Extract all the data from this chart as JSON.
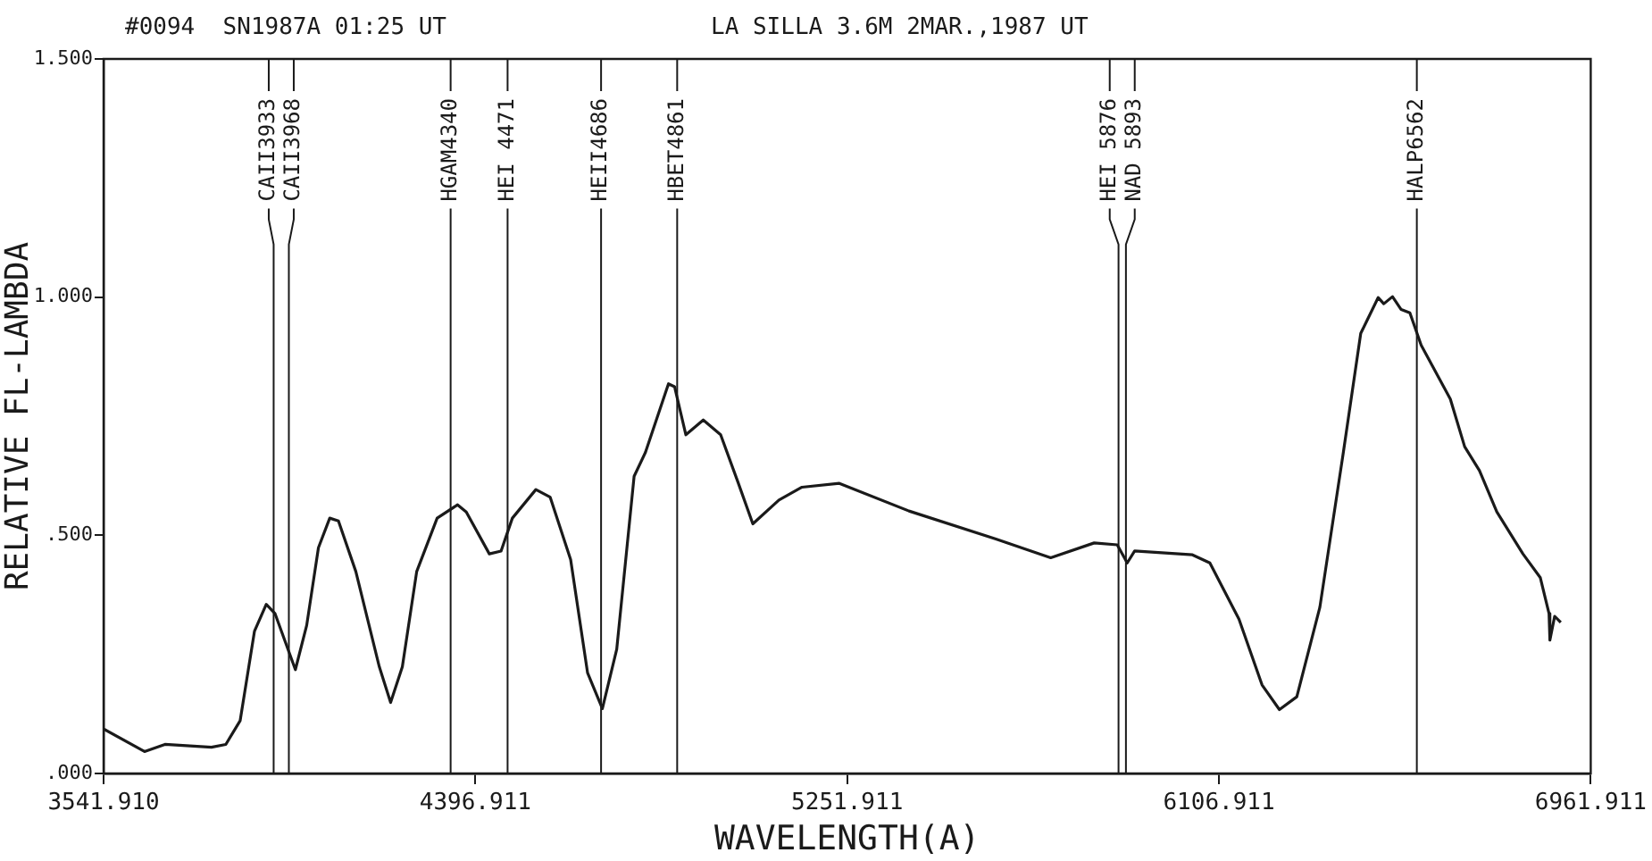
{
  "chart_data": {
    "type": "line",
    "title": "#0094  SN1987A 01:25 UT",
    "subtitle": "LA SILLA 3.6M 2MAR.,1987 UT",
    "xlabel": "WAVELENGTH(A)",
    "ylabel": "RELATIVE FL-LAMBDA",
    "xlim": [
      3541.91,
      6961.911
    ],
    "xticks": [
      {
        "value": 3541.91,
        "label": "3541.910"
      },
      4396.911,
      5251.911,
      6106.911,
      6961.911
    ],
    "ylim": [
      0,
      1.5
    ],
    "yticks": [
      {
        "value": 0,
        "label": ".000"
      },
      {
        "value": 0.5,
        "label": ".500"
      },
      {
        "value": 1,
        "label": "1.000"
      },
      {
        "value": 1.5,
        "label": "1.500"
      }
    ],
    "marker": "none",
    "line_style": "solid",
    "series": [
      {
        "color": "#1a1a1a",
        "x": [
          3543,
          3636,
          3683,
          3790,
          3823,
          3856,
          3889,
          3916,
          3936,
          3983,
          4009,
          4036,
          4062,
          4082,
          4122,
          4176,
          4202,
          4229,
          4262,
          4309,
          4356,
          4376,
          4429,
          4456,
          4482,
          4536,
          4569,
          4616,
          4655,
          4689,
          4722,
          4762,
          4788,
          4841,
          4855,
          4881,
          4921,
          4961,
          5001,
          5035,
          5095,
          5148,
          5234,
          5394,
          5594,
          5720,
          5820,
          5873,
          5896,
          5913,
          6046,
          6086,
          6153,
          6206,
          6246,
          6286,
          6339,
          6393,
          6433,
          6473,
          6486,
          6506,
          6526,
          6546,
          6572,
          6639,
          6672,
          6706,
          6746,
          6806,
          6846,
          6866,
          6868,
          6879,
          6893
        ],
        "values": [
          0.093,
          0.046,
          0.061,
          0.055,
          0.061,
          0.111,
          0.299,
          0.355,
          0.336,
          0.218,
          0.311,
          0.474,
          0.536,
          0.53,
          0.424,
          0.224,
          0.149,
          0.224,
          0.424,
          0.536,
          0.564,
          0.549,
          0.461,
          0.467,
          0.536,
          0.596,
          0.58,
          0.449,
          0.211,
          0.136,
          0.261,
          0.624,
          0.674,
          0.818,
          0.812,
          0.711,
          0.742,
          0.711,
          0.611,
          0.524,
          0.574,
          0.601,
          0.609,
          0.551,
          0.492,
          0.453,
          0.484,
          0.48,
          0.442,
          0.467,
          0.459,
          0.442,
          0.324,
          0.186,
          0.134,
          0.161,
          0.349,
          0.674,
          0.924,
          0.999,
          0.986,
          1.001,
          0.974,
          0.967,
          0.899,
          0.786,
          0.686,
          0.636,
          0.549,
          0.461,
          0.411,
          0.336,
          0.28,
          0.33,
          0.317
        ]
      }
    ],
    "ref_lines": [
      {
        "axis": "x",
        "value": 3933,
        "label": "CAII3933",
        "color": "#1a1a1a"
      },
      {
        "axis": "x",
        "value": 3968,
        "label": "CAII3968",
        "color": "#1a1a1a"
      },
      {
        "axis": "x",
        "value": 4340,
        "label": "HGAM4340",
        "color": "#1a1a1a"
      },
      {
        "axis": "x",
        "value": 4471,
        "label": "HEI 4471",
        "color": "#1a1a1a"
      },
      {
        "axis": "x",
        "value": 4686,
        "label": "HEII4686",
        "color": "#1a1a1a"
      },
      {
        "axis": "x",
        "value": 4861,
        "label": "HBET4861",
        "color": "#1a1a1a"
      },
      {
        "axis": "x",
        "value": 5876,
        "label": "HEI 5876",
        "color": "#1a1a1a"
      },
      {
        "axis": "x",
        "value": 5893,
        "label": "NAD 5893",
        "color": "#1a1a1a"
      },
      {
        "axis": "x",
        "value": 6562,
        "label": "HALP6562",
        "color": "#1a1a1a"
      }
    ]
  }
}
